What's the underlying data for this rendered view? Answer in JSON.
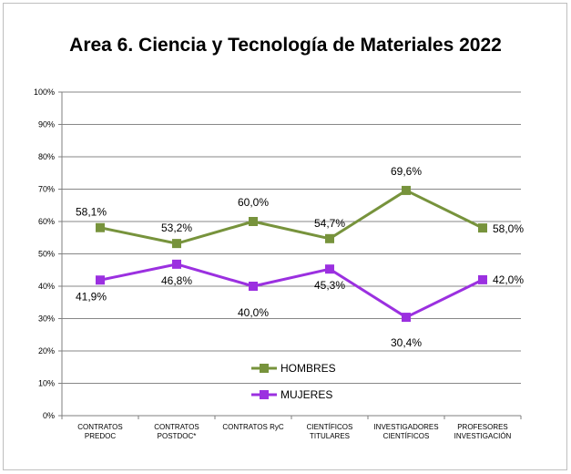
{
  "chart_data": {
    "type": "line",
    "title": "Area 6. Ciencia y Tecnología de Materiales 2022",
    "categories": [
      [
        "CONTRATOS",
        "PREDOC"
      ],
      [
        "CONTRATOS",
        "POSTDOC*"
      ],
      [
        "CONTRATOS RyC"
      ],
      [
        "CIENTÍFICOS",
        "TITULARES"
      ],
      [
        "INVESTIGADORES",
        "CIENTÍFICOS"
      ],
      [
        "PROFESORES",
        "INVESTIGACIÓN"
      ]
    ],
    "ylim": [
      0,
      100
    ],
    "yticks": [
      "0%",
      "10%",
      "20%",
      "30%",
      "40%",
      "50%",
      "60%",
      "70%",
      "80%",
      "90%",
      "100%"
    ],
    "grid": true,
    "legend_placement": "bottom-center",
    "series": [
      {
        "name": "HOMBRES",
        "color": "#77933c",
        "values": [
          58.1,
          53.2,
          60.0,
          54.7,
          69.6,
          58.0
        ],
        "labels": [
          "58,1%",
          "53,2%",
          "60,0%",
          "54,7%",
          "69,6%",
          "58,0%"
        ]
      },
      {
        "name": "MUJERES",
        "color": "#9b30e0",
        "values": [
          41.9,
          46.8,
          40.0,
          45.3,
          30.4,
          42.0
        ],
        "labels": [
          "41,9%",
          "46,8%",
          "40,0%",
          "45,3%",
          "30,4%",
          "42,0%"
        ]
      }
    ]
  }
}
